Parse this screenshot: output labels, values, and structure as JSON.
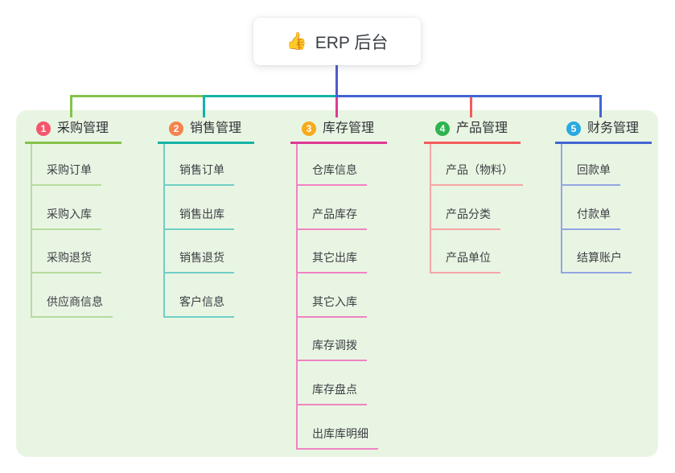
{
  "root": {
    "icon": "👍",
    "title": "ERP 后台",
    "trunk_color": "#4f5cc8"
  },
  "panel": {
    "background": "#e9f5e3"
  },
  "branches": [
    {
      "badge": "1",
      "label": "采购管理",
      "line_color": "#86c24b",
      "sub_line_color": "#b7db9d",
      "badge_color": "#f4566c",
      "items": [
        "采购订单",
        "采购入库",
        "采购退货",
        "供应商信息"
      ]
    },
    {
      "badge": "2",
      "label": "销售管理",
      "line_color": "#14b3a7",
      "sub_line_color": "#6fcfc6",
      "badge_color": "#f5834f",
      "items": [
        "销售订单",
        "销售出库",
        "销售退货",
        "客户信息"
      ]
    },
    {
      "badge": "3",
      "label": "库存管理",
      "line_color": "#de3a95",
      "sub_line_color": "#f083c2",
      "badge_color": "#f6ab1d",
      "items": [
        "仓库信息",
        "产品库存",
        "其它出库",
        "其它入库",
        "库存调拨",
        "库存盘点",
        "出库库明细"
      ]
    },
    {
      "badge": "4",
      "label": "产品管理",
      "line_color": "#f55b5b",
      "sub_line_color": "#f5a6a6",
      "badge_color": "#2eb450",
      "items": [
        "产品（物料）",
        "产品分类",
        "产品单位"
      ]
    },
    {
      "badge": "5",
      "label": "财务管理",
      "line_color": "#4365d2",
      "sub_line_color": "#93a5e3",
      "badge_color": "#2ba9e2",
      "items": [
        "回款单",
        "付款单",
        "结算账户"
      ]
    }
  ]
}
